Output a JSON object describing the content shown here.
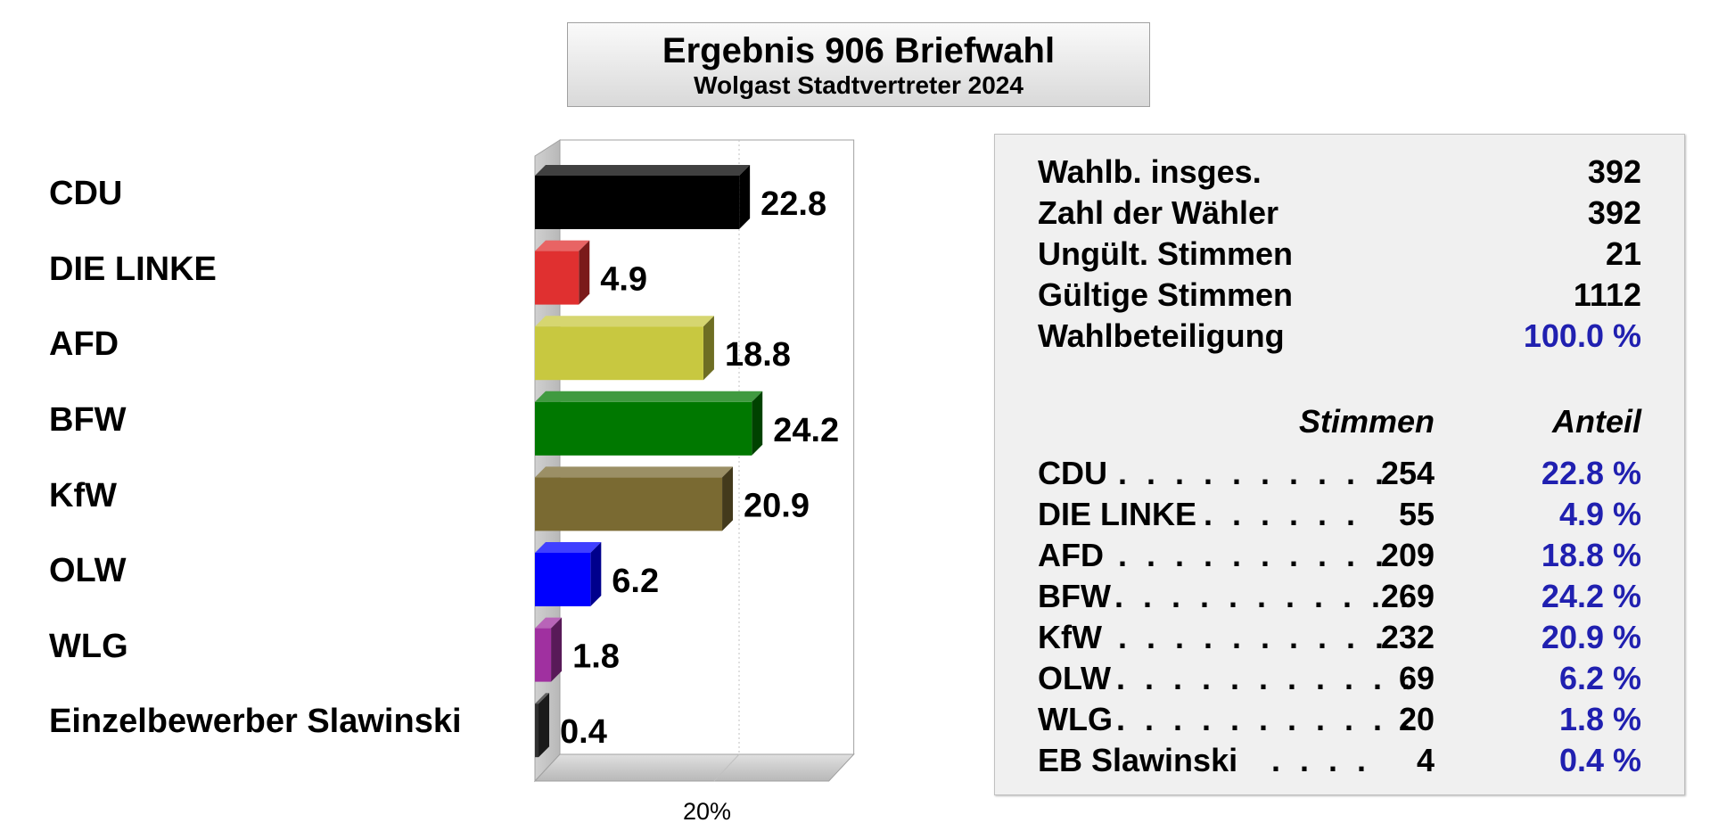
{
  "title": {
    "main": "Ergebnis 906 Briefwahl",
    "sub": "Wolgast Stadtvertreter 2024"
  },
  "chart_data": {
    "type": "bar",
    "orientation": "horizontal",
    "categories": [
      "CDU",
      "DIE LINKE",
      "AFD",
      "BFW",
      "KfW",
      "OLW",
      "WLG",
      "Einzelbewerber Slawinski"
    ],
    "values": [
      22.8,
      4.9,
      18.8,
      24.2,
      20.9,
      6.2,
      1.8,
      0.4
    ],
    "value_labels": [
      "22.8",
      "4.9",
      "18.8",
      "24.2",
      "20.9",
      "6.2",
      "1.8",
      "0.4"
    ],
    "colors": [
      "#000000",
      "#e03030",
      "#c8c840",
      "#007800",
      "#7a6a32",
      "#0000ff",
      "#a030a0",
      "#303030"
    ],
    "xlim": [
      0,
      40
    ],
    "ticks": [
      {
        "value": 20,
        "label": "20%"
      }
    ],
    "grid": true
  },
  "stats": {
    "rows": [
      {
        "label": "Wahlb. insges.",
        "value": "392"
      },
      {
        "label": "Zahl der Wähler",
        "value": "392"
      },
      {
        "label": "Ungült. Stimmen",
        "value": "21"
      },
      {
        "label": "Gültige Stimmen",
        "value": "1112"
      },
      {
        "label": "Wahlbeteiligung",
        "value": "100.0 %"
      }
    ],
    "col_votes": "Stimmen",
    "col_share": "Anteil",
    "parties": [
      {
        "name": "CDU",
        "dots": ". . . . . . . . . .",
        "votes": "254",
        "share": "22.8 %"
      },
      {
        "name": "DIE LINKE",
        "dots": ". . . . . .",
        "votes": "55",
        "share": "4.9 %"
      },
      {
        "name": "AFD",
        "dots": ". . . . . . . . . .",
        "votes": "209",
        "share": "18.8 %"
      },
      {
        "name": "BFW",
        "dots": ". . . . . . . . . . .",
        "votes": "269",
        "share": "24.2 %"
      },
      {
        "name": "KfW",
        "dots": ". . . . . . . . . .",
        "votes": "232",
        "share": "20.9 %"
      },
      {
        "name": "OLW",
        "dots": ". . . . . . . . . . .",
        "votes": "69",
        "share": "6.2 %"
      },
      {
        "name": "WLG",
        "dots": ". . . . . . . . . . .",
        "votes": "20",
        "share": "1.8 %"
      },
      {
        "name": "EB Slawinski",
        "dots": ". . . .",
        "votes": "4",
        "share": "0.4 %"
      }
    ]
  }
}
